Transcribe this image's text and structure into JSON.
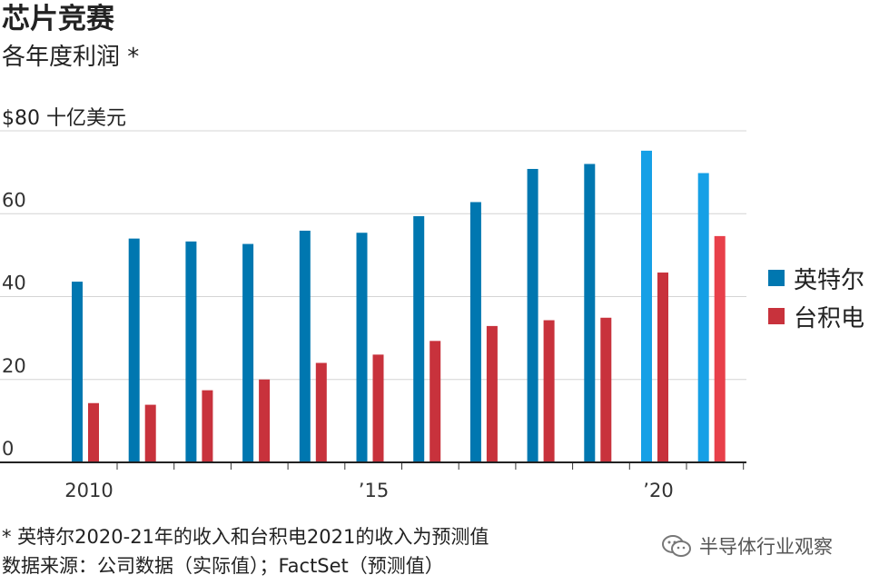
{
  "header": {
    "title": "芯片竞赛",
    "subtitle": "各年度利润 *"
  },
  "chart_data": {
    "type": "bar",
    "title": "芯片竞赛",
    "subtitle": "各年度利润 *",
    "ylabel": "$80 十亿美元",
    "ylim": [
      0,
      80
    ],
    "yticks": [
      "0",
      "20",
      "40",
      "60",
      ""
    ],
    "x": [
      2010,
      2011,
      2012,
      2013,
      2014,
      2015,
      2016,
      2017,
      2018,
      2019,
      2020,
      2021
    ],
    "xtick_labels": [
      {
        "year": 2010,
        "label": "2010"
      },
      {
        "year": 2015,
        "label": "’15"
      },
      {
        "year": 2020,
        "label": "’20"
      }
    ],
    "series": [
      {
        "name": "英特尔",
        "color": "#0077b0",
        "forecast_color": "#16a0e6",
        "forecast_years": [
          2020,
          2021
        ],
        "values": [
          43.6,
          54.0,
          53.3,
          52.7,
          55.9,
          55.4,
          59.4,
          62.8,
          70.8,
          72.0,
          75.2,
          69.8
        ]
      },
      {
        "name": "台积电",
        "color": "#c8323c",
        "forecast_color": "#e8404a",
        "forecast_years": [
          2021
        ],
        "values": [
          14.3,
          13.9,
          17.4,
          20.0,
          24.0,
          26.0,
          29.3,
          32.9,
          34.3,
          34.9,
          45.8,
          54.6
        ]
      }
    ],
    "grid": true,
    "legend_position": "right"
  },
  "legend": {
    "items": [
      {
        "label": "英特尔",
        "color": "#0077b0"
      },
      {
        "label": "台积电",
        "color": "#c8323c"
      }
    ]
  },
  "footer": {
    "note": "* 英特尔2020-21年的收入和台积电2021的收入为预测值",
    "source": "数据来源：公司数据（实际值）；FactSet（预测值）"
  },
  "watermark": {
    "icon": "wechat-icon",
    "text": "半导体行业观察"
  }
}
